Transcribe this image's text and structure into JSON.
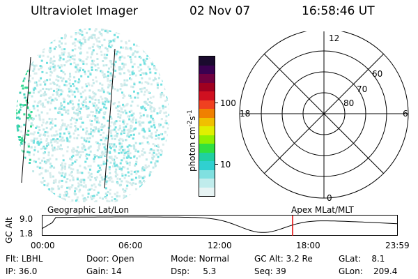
{
  "header": {
    "instrument": "Ultraviolet Imager",
    "date": "02 Nov 07",
    "time": "16:58:46 UT"
  },
  "colorbar": {
    "label": "photon cm-2s-1",
    "ticks": [
      "100",
      "10"
    ],
    "colors": [
      "#1a0a2e",
      "#3a0050",
      "#700040",
      "#a00020",
      "#d01020",
      "#f04020",
      "#f08000",
      "#f0c000",
      "#e0f000",
      "#90f000",
      "#30e040",
      "#20d0a0",
      "#30d0d0",
      "#80e0e0",
      "#c0ecec",
      "#e8f4f4"
    ]
  },
  "polar_plot": {
    "clock_labels": {
      "top": "12",
      "left": "18",
      "right": "6",
      "bottom": "0"
    },
    "lat_labels": [
      "60",
      "70",
      "80"
    ]
  },
  "timeline": {
    "left_label": "Geographic Lat/Lon",
    "right_label": "Apex  MLat/MLT",
    "axis_title": "GC Alt",
    "y_ticks": [
      "9.0",
      "1.8"
    ],
    "x_ticks": [
      "00:00",
      "06:00",
      "12:00",
      "18:00",
      "23:59"
    ],
    "marker_time": "16:58:46"
  },
  "info_rows": [
    [
      {
        "label": "Flt:",
        "value": "LBHL"
      },
      {
        "label": "Door:",
        "value": "Open"
      },
      {
        "label": "Mode:",
        "value": "Normal"
      },
      {
        "label": "GC Alt:",
        "value": "3.2 Re"
      },
      {
        "label": "GLat:",
        "value": "8.1"
      }
    ],
    [
      {
        "label": "IP:",
        "value": "36.0"
      },
      {
        "label": "Gain:",
        "value": "14"
      },
      {
        "label": "Dsp:",
        "value": "5.3"
      },
      {
        "label": "Seq:",
        "value": "39"
      },
      {
        "label": "GLon:",
        "value": "209.4"
      }
    ]
  ]
}
